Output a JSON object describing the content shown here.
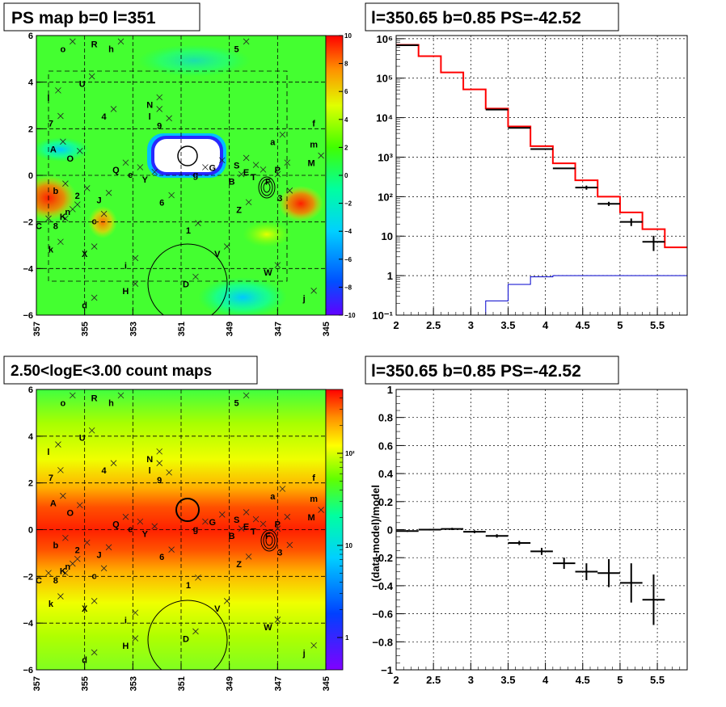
{
  "colors": {
    "data": "#000000",
    "model": "#ff0000",
    "bkg": "#0000cc"
  },
  "panels": {
    "ps_map": {
      "title": "PS map b=0 l=351"
    },
    "spectrum": {
      "title": "l=350.65 b=0.85 PS=-42.52"
    },
    "count_map": {
      "title": "2.50<logE<3.00 count maps"
    },
    "residual": {
      "title": "l=350.65 b=0.85 PS=-42.52",
      "ylabel": "(data-model)/model"
    }
  },
  "chart_data": [
    {
      "type": "heatmap",
      "name": "ps_map",
      "title": "PS map b=0 l=351",
      "x_ticks": [
        "357",
        "355",
        "353",
        "351",
        "349",
        "347",
        "345"
      ],
      "y_ticks": [
        "6",
        "4",
        "2",
        "0",
        "-2",
        "-4",
        "-6"
      ],
      "xlim": [
        357,
        345
      ],
      "ylim": [
        -6,
        6
      ],
      "colorbar_ticks": [
        "10",
        "8",
        "6",
        "4",
        "2",
        "0",
        "−2",
        "−4",
        "−6",
        "−8",
        "−10"
      ],
      "colorbar_range": [
        -10,
        10
      ],
      "grid": true,
      "source_labels": [
        {
          "t": "o",
          "l": 355.9,
          "b": 5.4
        },
        {
          "t": "R",
          "l": 354.6,
          "b": 5.6
        },
        {
          "t": "h",
          "l": 353.9,
          "b": 5.4
        },
        {
          "t": "5",
          "l": 348.7,
          "b": 5.4
        },
        {
          "t": "U",
          "l": 355.1,
          "b": 3.9
        },
        {
          "t": "l",
          "l": 356.5,
          "b": 3.3
        },
        {
          "t": "N",
          "l": 352.3,
          "b": 3.0
        },
        {
          "t": "4",
          "l": 354.2,
          "b": 2.5
        },
        {
          "t": "l",
          "l": 352.3,
          "b": 2.5
        },
        {
          "t": "9",
          "l": 351.9,
          "b": 2.1
        },
        {
          "t": "7",
          "l": 356.4,
          "b": 2.2
        },
        {
          "t": "f",
          "l": 345.5,
          "b": 2.2
        },
        {
          "t": "m",
          "l": 345.5,
          "b": 1.3
        },
        {
          "t": "a",
          "l": 347.2,
          "b": 1.4
        },
        {
          "t": "A",
          "l": 356.3,
          "b": 1.1
        },
        {
          "t": "O",
          "l": 355.6,
          "b": 0.7
        },
        {
          "t": "M",
          "l": 345.6,
          "b": 0.5
        },
        {
          "t": "Q",
          "l": 353.7,
          "b": 0.2
        },
        {
          "t": "e",
          "l": 353.1,
          "b": 0.0
        },
        {
          "t": "Y",
          "l": 352.5,
          "b": -0.2
        },
        {
          "t": "g",
          "l": 350.4,
          "b": 0.0
        },
        {
          "t": "G",
          "l": 349.7,
          "b": 0.3
        },
        {
          "t": "S",
          "l": 348.7,
          "b": 0.4
        },
        {
          "t": "E",
          "l": 348.3,
          "b": 0.1
        },
        {
          "t": "T",
          "l": 348.0,
          "b": -0.1
        },
        {
          "t": "P",
          "l": 347.0,
          "b": 0.2
        },
        {
          "t": "F",
          "l": 347.4,
          "b": -0.3
        },
        {
          "t": "B",
          "l": 348.9,
          "b": -0.3
        },
        {
          "t": "3",
          "l": 346.9,
          "b": -1.0
        },
        {
          "t": "b",
          "l": 356.2,
          "b": -0.7
        },
        {
          "t": "2",
          "l": 355.3,
          "b": -0.9
        },
        {
          "t": "J",
          "l": 354.4,
          "b": -1.1
        },
        {
          "t": "6",
          "l": 351.8,
          "b": -1.2
        },
        {
          "t": "Z",
          "l": 348.6,
          "b": -1.5
        },
        {
          "t": "n",
          "l": 355.7,
          "b": -1.6
        },
        {
          "t": "K",
          "l": 355.9,
          "b": -1.8
        },
        {
          "t": "C",
          "l": 356.9,
          "b": -2.2
        },
        {
          "t": "8",
          "l": 356.2,
          "b": -2.2
        },
        {
          "t": "c",
          "l": 354.6,
          "b": -2.0
        },
        {
          "t": "1",
          "l": 350.7,
          "b": -2.4
        },
        {
          "t": "k",
          "l": 356.4,
          "b": -3.2
        },
        {
          "t": "X",
          "l": 355.0,
          "b": -3.4
        },
        {
          "t": "V",
          "l": 349.5,
          "b": -3.4
        },
        {
          "t": "i",
          "l": 353.3,
          "b": -3.9
        },
        {
          "t": "W",
          "l": 347.4,
          "b": -4.2
        },
        {
          "t": "D",
          "l": 350.8,
          "b": -4.7
        },
        {
          "t": "H",
          "l": 353.3,
          "b": -5.0
        },
        {
          "t": "j",
          "l": 345.9,
          "b": -5.3
        },
        {
          "t": "d",
          "l": 355.0,
          "b": -5.6
        }
      ]
    },
    {
      "type": "line",
      "name": "spectrum",
      "title": "l=350.65 b=0.85 PS=-42.52",
      "xlim": [
        2,
        5.9
      ],
      "ylim": [
        0.1,
        1200000
      ],
      "yscale": "log",
      "x_ticks": [
        "2",
        "2.5",
        "3",
        "3.5",
        "4",
        "4.5",
        "5",
        "5.5"
      ],
      "y_ticks": [
        "10⁻¹",
        "1",
        "10",
        "10²",
        "10³",
        "10⁴",
        "10⁵",
        "10⁶"
      ],
      "grid": true,
      "bin_edges": [
        2.0,
        2.3,
        2.6,
        2.9,
        3.2,
        3.5,
        3.8,
        4.1,
        4.4,
        4.7,
        5.0,
        5.3,
        5.6,
        5.9
      ],
      "series": [
        {
          "values": [
            700000,
            360000,
            140000,
            52000,
            17000,
            6000,
            1900,
            700,
            260,
            100,
            40,
            15,
            5.2
          ]
        },
        {
          "values": [
            null,
            null,
            null,
            0.09,
            0.23,
            0.6,
            0.93,
            1.0,
            1.0,
            1.0,
            1.0,
            1.0,
            1.0
          ]
        }
      ],
      "points": [
        {
          "x": 2.15,
          "y": 680000,
          "err": 0
        },
        {
          "x": 3.35,
          "y": 16000,
          "err": 0
        },
        {
          "x": 3.65,
          "y": 5500,
          "err": 0
        },
        {
          "x": 3.95,
          "y": 1600,
          "err": 0
        },
        {
          "x": 4.25,
          "y": 520,
          "err": 0
        },
        {
          "x": 4.55,
          "y": 170,
          "err": 20
        },
        {
          "x": 4.85,
          "y": 66,
          "err": 8
        },
        {
          "x": 5.15,
          "y": 23,
          "err": 5
        },
        {
          "x": 5.45,
          "y": 7.2,
          "err": 3
        }
      ]
    },
    {
      "type": "heatmap",
      "name": "count_map",
      "title": "2.50<logE<3.00 count maps",
      "x_ticks": [
        "357",
        "355",
        "353",
        "351",
        "349",
        "347",
        "345"
      ],
      "y_ticks": [
        "6",
        "4",
        "2",
        "0",
        "-2",
        "-4",
        "-6"
      ],
      "xlim": [
        357,
        345
      ],
      "ylim": [
        -6,
        6
      ],
      "colorbar_ticks": [
        "10²",
        "10",
        "1"
      ],
      "colorbar_scale": "log",
      "grid": true
    },
    {
      "type": "scatter",
      "name": "residual",
      "title": "l=350.65 b=0.85 PS=-42.52",
      "xlim": [
        2,
        5.9
      ],
      "ylim": [
        -1,
        1
      ],
      "x_ticks": [
        "2",
        "2.5",
        "3",
        "3.5",
        "4",
        "4.5",
        "5",
        "5.5"
      ],
      "y_ticks": [
        "1",
        "0.8",
        "0.6",
        "0.4",
        "0.2",
        "0",
        "−0.2",
        "−0.4",
        "−0.6",
        "−0.8",
        "−1"
      ],
      "ylabel": "(data-model)/model",
      "grid": true,
      "points": [
        {
          "x": 2.15,
          "y": -0.01,
          "err": 0.006
        },
        {
          "x": 2.45,
          "y": 0.0,
          "err": 0.006
        },
        {
          "x": 2.75,
          "y": 0.005,
          "err": 0.008
        },
        {
          "x": 3.05,
          "y": -0.015,
          "err": 0.01
        },
        {
          "x": 3.35,
          "y": -0.045,
          "err": 0.012
        },
        {
          "x": 3.65,
          "y": -0.095,
          "err": 0.015
        },
        {
          "x": 3.95,
          "y": -0.155,
          "err": 0.025
        },
        {
          "x": 4.25,
          "y": -0.24,
          "err": 0.04
        },
        {
          "x": 4.55,
          "y": -0.3,
          "err": 0.06
        },
        {
          "x": 4.85,
          "y": -0.31,
          "err": 0.1
        },
        {
          "x": 5.15,
          "y": -0.38,
          "err": 0.14
        },
        {
          "x": 5.45,
          "y": -0.5,
          "err": 0.18
        }
      ]
    }
  ]
}
